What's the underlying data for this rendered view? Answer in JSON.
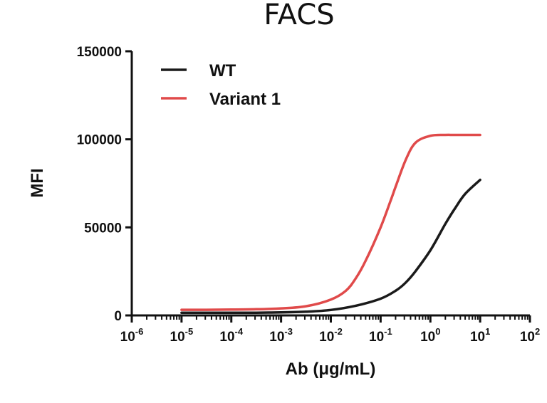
{
  "chart_data": {
    "type": "line",
    "title": "FACS",
    "xlabel": "Ab (μg/mL)",
    "ylabel": "MFI",
    "x_scale": "log",
    "xlim": [
      1e-06,
      100
    ],
    "ylim": [
      0,
      150000
    ],
    "x_ticks": [
      {
        "base": "10",
        "exp": "-6",
        "value": 1e-06
      },
      {
        "base": "10",
        "exp": "-5",
        "value": 1e-05
      },
      {
        "base": "10",
        "exp": "-4",
        "value": 0.0001
      },
      {
        "base": "10",
        "exp": "-3",
        "value": 0.001
      },
      {
        "base": "10",
        "exp": "-2",
        "value": 0.01
      },
      {
        "base": "10",
        "exp": "-1",
        "value": 0.1
      },
      {
        "base": "10",
        "exp": "0",
        "value": 1
      },
      {
        "base": "10",
        "exp": "1",
        "value": 10
      },
      {
        "base": "10",
        "exp": "2",
        "value": 100
      }
    ],
    "y_ticks": [
      {
        "label": "0",
        "value": 0
      },
      {
        "label": "50000",
        "value": 50000
      },
      {
        "label": "100000",
        "value": 100000
      },
      {
        "label": "150000",
        "value": 150000
      }
    ],
    "grid": false,
    "legend_position": "top-left",
    "series": [
      {
        "name": "WT",
        "color": "#1a1a1a",
        "x": [
          1e-05,
          3.16e-05,
          0.0001,
          0.000316,
          0.001,
          0.00316,
          0.01,
          0.0316,
          0.1,
          0.2,
          0.316,
          0.5,
          1,
          2,
          3.16,
          5,
          10
        ],
        "y": [
          1500,
          1500,
          1520,
          1550,
          1700,
          2100,
          3100,
          5500,
          9500,
          14000,
          18500,
          25000,
          37000,
          52000,
          61000,
          69000,
          77000
        ]
      },
      {
        "name": "Variant 1",
        "color": "#e04a4a",
        "x": [
          1e-05,
          3.16e-05,
          0.0001,
          0.000316,
          0.001,
          0.00316,
          0.01,
          0.02,
          0.0316,
          0.05,
          0.1,
          0.158,
          0.2,
          0.316,
          0.5,
          1,
          2,
          3.16,
          10
        ],
        "y": [
          3200,
          3200,
          3300,
          3500,
          4000,
          5200,
          9000,
          14000,
          21000,
          31000,
          50000,
          65000,
          73000,
          88000,
          98000,
          102000,
          102500,
          102500,
          102500
        ]
      }
    ]
  }
}
